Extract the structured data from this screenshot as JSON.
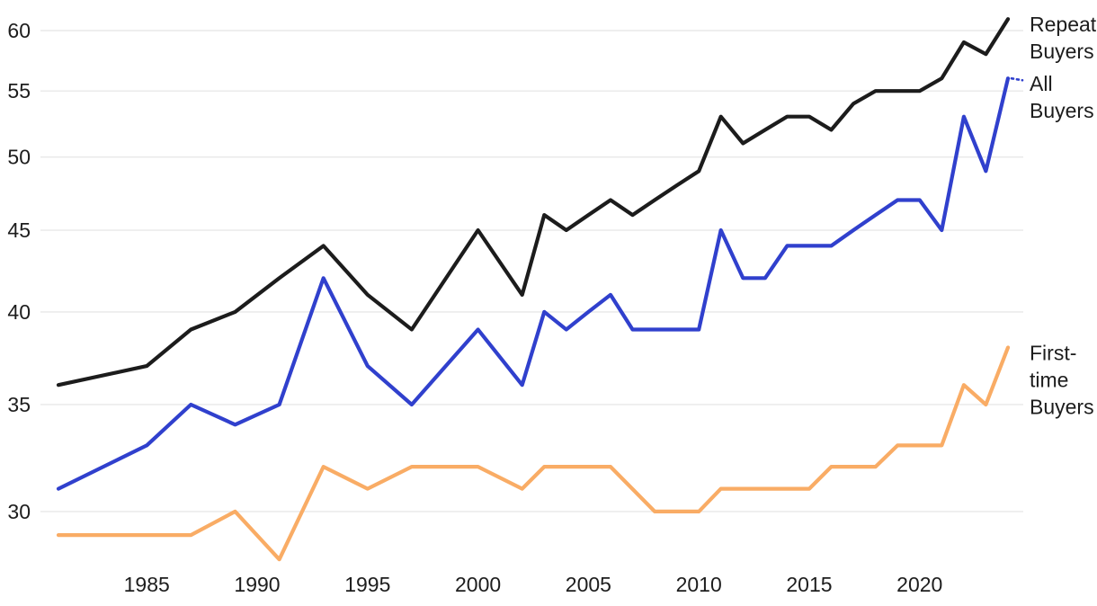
{
  "page": {
    "background": "#ffffff",
    "text_color": "#1d1d1d",
    "gridline_color": "#e8e8e8"
  },
  "chart_data": {
    "type": "line",
    "title": "",
    "xlabel": "",
    "ylabel": "",
    "x_axis": {
      "range": [
        1981,
        2024
      ],
      "ticks": [
        1985,
        1990,
        1995,
        2000,
        2005,
        2010,
        2015,
        2020
      ]
    },
    "y_axis": {
      "range": [
        27.5,
        61.5
      ],
      "scale": "log",
      "ticks": [
        30,
        35,
        40,
        45,
        50,
        55,
        60
      ],
      "gridlines": true
    },
    "legend_position": "right-end-labels",
    "series": [
      {
        "name": "Repeat Buyers",
        "label_lines": [
          "Repeat",
          "Buyers"
        ],
        "color": "#1c1c1c",
        "points": [
          [
            1981,
            36
          ],
          [
            1985,
            37
          ],
          [
            1987,
            39
          ],
          [
            1989,
            40
          ],
          [
            1991,
            42
          ],
          [
            1993,
            44
          ],
          [
            1995,
            41
          ],
          [
            1997,
            39
          ],
          [
            2000,
            45
          ],
          [
            2002,
            41
          ],
          [
            2003,
            46
          ],
          [
            2004,
            45
          ],
          [
            2005,
            46
          ],
          [
            2006,
            47
          ],
          [
            2007,
            46
          ],
          [
            2008,
            47
          ],
          [
            2009,
            48
          ],
          [
            2010,
            49
          ],
          [
            2011,
            53
          ],
          [
            2012,
            51
          ],
          [
            2013,
            52
          ],
          [
            2014,
            53
          ],
          [
            2015,
            53
          ],
          [
            2016,
            52
          ],
          [
            2017,
            54
          ],
          [
            2018,
            55
          ],
          [
            2019,
            55
          ],
          [
            2020,
            55
          ],
          [
            2021,
            56
          ],
          [
            2022,
            59
          ],
          [
            2023,
            58
          ],
          [
            2024,
            61
          ]
        ]
      },
      {
        "name": "All Buyers",
        "label_lines": [
          "All",
          "Buyers"
        ],
        "color": "#3040cd",
        "has_label_connector": true,
        "points": [
          [
            1981,
            31
          ],
          [
            1985,
            33
          ],
          [
            1987,
            35
          ],
          [
            1989,
            34
          ],
          [
            1991,
            35
          ],
          [
            1993,
            42
          ],
          [
            1995,
            37
          ],
          [
            1997,
            35
          ],
          [
            2000,
            39
          ],
          [
            2002,
            36
          ],
          [
            2003,
            40
          ],
          [
            2004,
            39
          ],
          [
            2005,
            40
          ],
          [
            2006,
            41
          ],
          [
            2007,
            39
          ],
          [
            2008,
            39
          ],
          [
            2009,
            39
          ],
          [
            2010,
            39
          ],
          [
            2011,
            45
          ],
          [
            2012,
            42
          ],
          [
            2013,
            42
          ],
          [
            2014,
            44
          ],
          [
            2015,
            44
          ],
          [
            2016,
            44
          ],
          [
            2017,
            45
          ],
          [
            2018,
            46
          ],
          [
            2019,
            47
          ],
          [
            2020,
            47
          ],
          [
            2021,
            45
          ],
          [
            2022,
            53
          ],
          [
            2023,
            49
          ],
          [
            2024,
            56
          ]
        ]
      },
      {
        "name": "First-time Buyers",
        "label_lines": [
          "First-",
          "time",
          "Buyers"
        ],
        "color": "#f9ac65",
        "points": [
          [
            1981,
            29
          ],
          [
            1985,
            29
          ],
          [
            1987,
            29
          ],
          [
            1989,
            30
          ],
          [
            1991,
            28
          ],
          [
            1993,
            32
          ],
          [
            1995,
            31
          ],
          [
            1997,
            32
          ],
          [
            1998,
            32
          ],
          [
            1999,
            32
          ],
          [
            2000,
            32
          ],
          [
            2002,
            31
          ],
          [
            2003,
            32
          ],
          [
            2004,
            32
          ],
          [
            2005,
            32
          ],
          [
            2006,
            32
          ],
          [
            2008,
            30
          ],
          [
            2009,
            30
          ],
          [
            2010,
            30
          ],
          [
            2011,
            31
          ],
          [
            2012,
            31
          ],
          [
            2013,
            31
          ],
          [
            2014,
            31
          ],
          [
            2015,
            31
          ],
          [
            2016,
            32
          ],
          [
            2017,
            32
          ],
          [
            2018,
            32
          ],
          [
            2019,
            33
          ],
          [
            2020,
            33
          ],
          [
            2021,
            33
          ],
          [
            2022,
            36
          ],
          [
            2023,
            35
          ],
          [
            2024,
            38
          ]
        ]
      }
    ]
  }
}
